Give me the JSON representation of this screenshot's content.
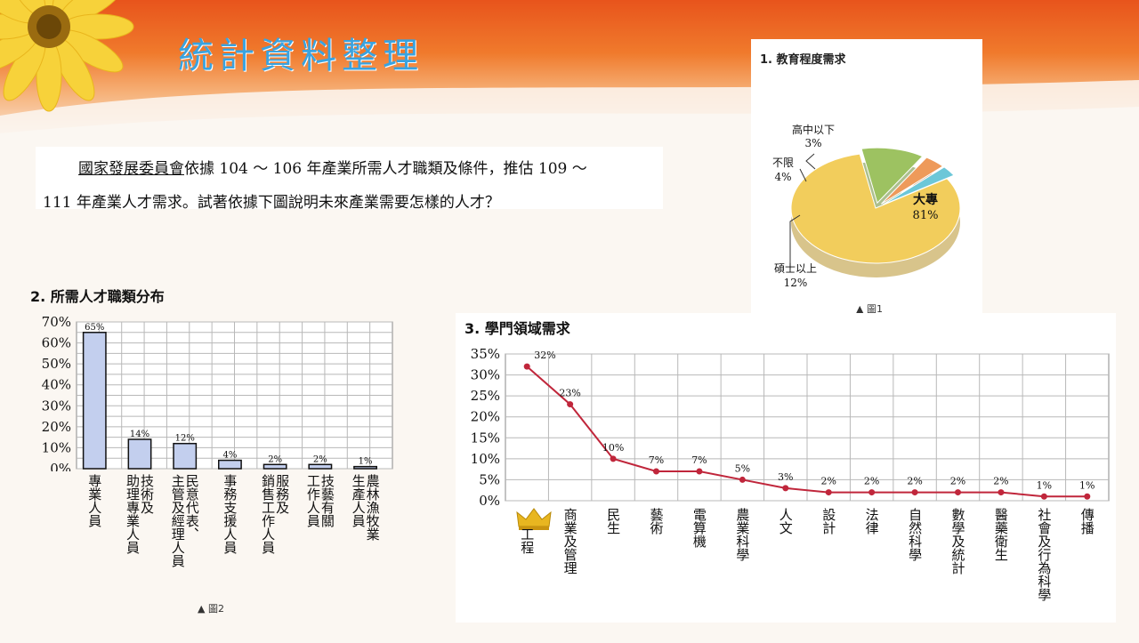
{
  "slide": {
    "title": "統計資料整理",
    "question_line1_underlined": "國家發展委員會",
    "question_line1_rest": "依據 104 ～ 106 年產業所需人才職類及條件，推估 109 ～",
    "question_line2": "111 年產業人才需求。試著依據下圖說明未來產業需要怎樣的人才？"
  },
  "colors": {
    "title": "#3aa3e0",
    "banner": "#e8541c",
    "bar_fill": "#c3cfee",
    "line": "#c0263b",
    "pie_main": "#f2cd5c",
    "pie_green": "#9dc261",
    "pie_orange": "#ee9a5a",
    "pie_blue": "#6cc7d8"
  },
  "chart_data": [
    {
      "type": "pie",
      "title": "1. 教育程度需求",
      "caption": "▲ 圖1",
      "slices": [
        {
          "name": "大專",
          "value": 81,
          "label": "81%"
        },
        {
          "name": "碩士以上",
          "value": 12,
          "label": "12%"
        },
        {
          "name": "不限",
          "value": 4,
          "label": "4%"
        },
        {
          "name": "高中以下",
          "value": 3,
          "label": "3%"
        }
      ]
    },
    {
      "type": "bar",
      "title": "2. 所需人才職類分布",
      "caption": "▲ 圖2",
      "categories": [
        "專業人員",
        "技術及助理專業人員",
        "民意代表、主管及經理人員",
        "事務支援人員",
        "服務及銷售工作人員",
        "技藝有關工作人員",
        "農林漁牧業生產人員"
      ],
      "category_columns": [
        [
          "專業人員"
        ],
        [
          "技術及",
          "助理專業人員"
        ],
        [
          "民意代表、",
          "主管及經理人員"
        ],
        [
          "事務支援人員"
        ],
        [
          "服務及",
          "銷售工作人員"
        ],
        [
          "技藝有關",
          "工作人員"
        ],
        [
          "農林漁牧業",
          "生產人員"
        ]
      ],
      "values": [
        65,
        14,
        12,
        4,
        2,
        2,
        1
      ],
      "data_labels": [
        "65%",
        "14%",
        "12%",
        "4%",
        "2%",
        "2%",
        "1%"
      ],
      "yticks": [
        "0%",
        "10%",
        "20%",
        "30%",
        "40%",
        "50%",
        "60%",
        "70%"
      ],
      "ylim": [
        0,
        70
      ]
    },
    {
      "type": "line",
      "title": "3. 學門領域需求",
      "categories": [
        "工程",
        "商業及管理",
        "民生",
        "藝術",
        "電算機",
        "農業科學",
        "人文",
        "設計",
        "法律",
        "自然科學",
        "數學及統計",
        "醫藥衛生",
        "社會及行為科學",
        "傳播"
      ],
      "values": [
        32,
        23,
        10,
        7,
        7,
        5,
        3,
        2,
        2,
        2,
        2,
        2,
        1,
        1
      ],
      "data_labels": [
        "32%",
        "23%",
        "10%",
        "7%",
        "7%",
        "5%",
        "3%",
        "2%",
        "2%",
        "2%",
        "2%",
        "2%",
        "1%",
        "1%"
      ],
      "yticks": [
        "0%",
        "5%",
        "10%",
        "15%",
        "20%",
        "25%",
        "30%",
        "35%"
      ],
      "ylim": [
        0,
        35
      ]
    }
  ]
}
